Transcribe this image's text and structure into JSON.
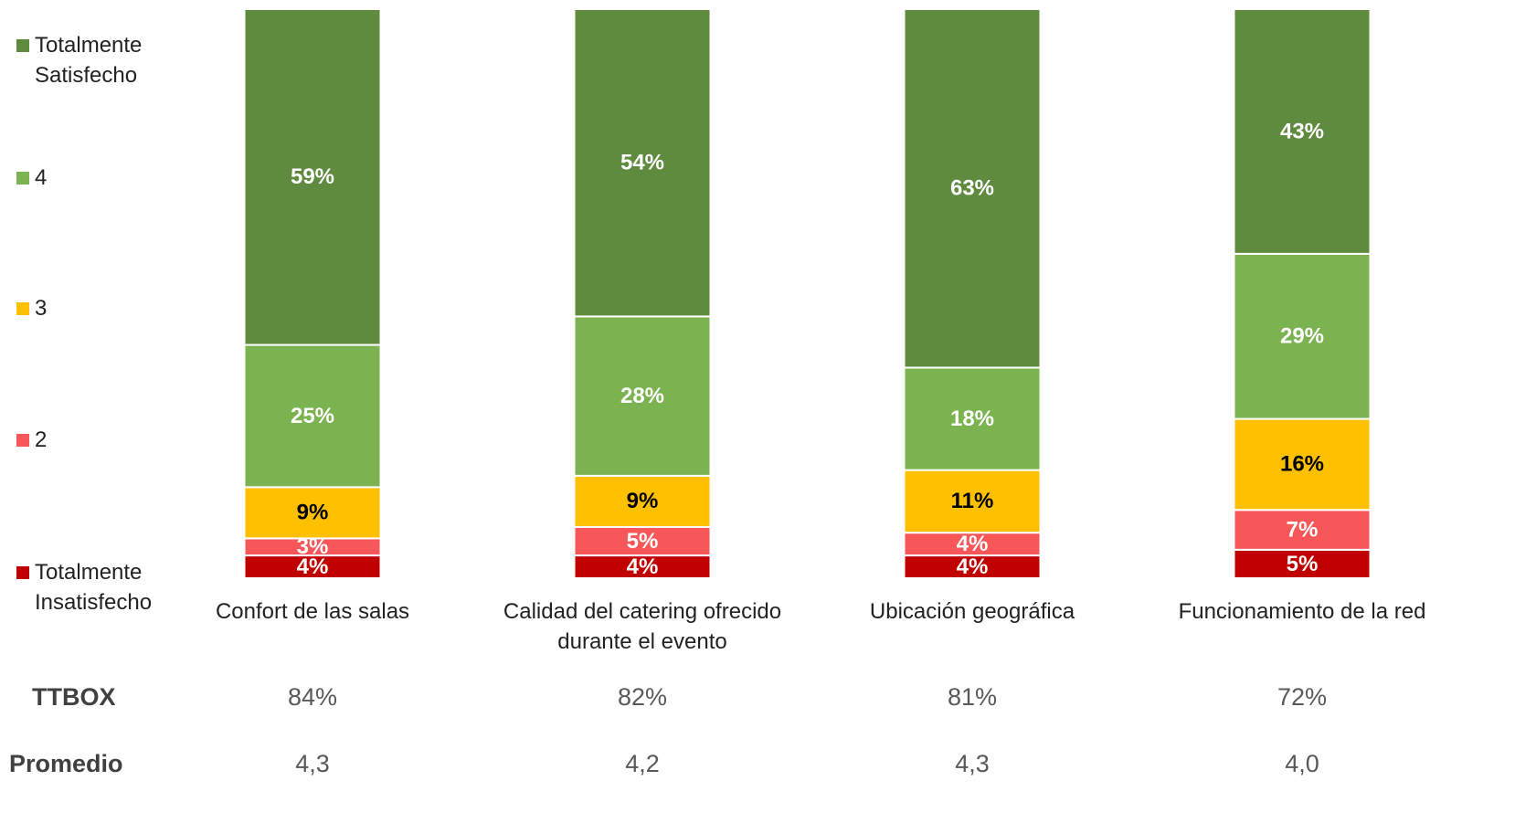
{
  "chart_data": {
    "type": "stacked_bar",
    "categories": [
      "Confort de las salas",
      "Calidad del catering ofrecido durante el evento",
      "Ubicación geográfica",
      "Funcionamiento de la red"
    ],
    "ylim": [
      0,
      100
    ],
    "series": [
      {
        "name": "Totalmente Insatisfecho",
        "color": "#c00000",
        "label_color": "#ffffff",
        "values": [
          4,
          4,
          4,
          5
        ],
        "value_labels": [
          "4%",
          "4%",
          "4%",
          "5%"
        ]
      },
      {
        "name": "2",
        "color": "#f8575a",
        "label_color": "#ffffff",
        "values": [
          3,
          5,
          4,
          7
        ],
        "value_labels": [
          "3%",
          "5%",
          "4%",
          "7%"
        ]
      },
      {
        "name": "3",
        "color": "#ffc000",
        "label_color": "#000000",
        "values": [
          9,
          9,
          11,
          16
        ],
        "value_labels": [
          "9%",
          "9%",
          "11%",
          "16%"
        ]
      },
      {
        "name": "4",
        "color": "#7ab34f",
        "label_color": "#ffffff",
        "values": [
          25,
          28,
          18,
          29
        ],
        "value_labels": [
          "25%",
          "28%",
          "18%",
          "29%"
        ]
      },
      {
        "name": "Totalmente Satisfecho",
        "color": "#5e8b3e",
        "label_color": "#ffffff",
        "values": [
          59,
          54,
          63,
          43
        ],
        "value_labels": [
          "59%",
          "54%",
          "63%",
          "43%"
        ]
      }
    ],
    "rows": [
      {
        "label": "TTBOX",
        "values": [
          "84%",
          "82%",
          "81%",
          "72%"
        ]
      },
      {
        "label": "Promedio",
        "values": [
          "4,3",
          "4,2",
          "4,3",
          "4,0"
        ]
      }
    ]
  }
}
